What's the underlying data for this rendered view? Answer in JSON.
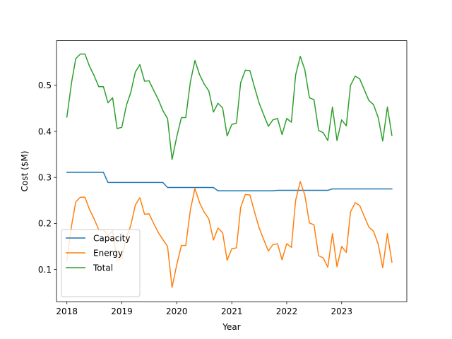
{
  "chart_data": {
    "type": "line",
    "title": "",
    "xlabel": "Year",
    "ylabel": "Cost ($M)",
    "xlim": [
      "2017-10-24",
      "2024-03-09"
    ],
    "ylim": [
      0.03,
      0.597
    ],
    "x_ticks": [
      "2018",
      "2019",
      "2020",
      "2021",
      "2022",
      "2023"
    ],
    "y_ticks": [
      "0.1",
      "0.2",
      "0.3",
      "0.4",
      "0.5"
    ],
    "legend_position": "lower-left",
    "grid": false,
    "x": [
      "2018-01-01",
      "2018-02-01",
      "2018-03-01",
      "2018-04-01",
      "2018-05-01",
      "2018-06-01",
      "2018-07-01",
      "2018-08-01",
      "2018-09-01",
      "2018-10-01",
      "2018-11-01",
      "2018-12-01",
      "2019-01-01",
      "2019-02-01",
      "2019-03-01",
      "2019-04-01",
      "2019-05-01",
      "2019-06-01",
      "2019-07-01",
      "2019-08-01",
      "2019-09-01",
      "2019-10-01",
      "2019-11-01",
      "2019-12-01",
      "2020-01-01",
      "2020-02-01",
      "2020-03-01",
      "2020-04-01",
      "2020-05-01",
      "2020-06-01",
      "2020-07-01",
      "2020-08-01",
      "2020-09-01",
      "2020-10-01",
      "2020-11-01",
      "2020-12-01",
      "2021-01-01",
      "2021-02-01",
      "2021-03-01",
      "2021-04-01",
      "2021-05-01",
      "2021-06-01",
      "2021-07-01",
      "2021-08-01",
      "2021-09-01",
      "2021-10-01",
      "2021-11-01",
      "2021-12-01",
      "2022-01-01",
      "2022-02-01",
      "2022-03-01",
      "2022-04-01",
      "2022-05-01",
      "2022-06-01",
      "2022-07-01",
      "2022-08-01",
      "2022-09-01",
      "2022-10-01",
      "2022-11-01",
      "2022-12-01",
      "2023-01-01",
      "2023-02-01",
      "2023-03-01",
      "2023-04-01",
      "2023-05-01",
      "2023-06-01",
      "2023-07-01",
      "2023-08-01",
      "2023-09-01",
      "2023-10-01",
      "2023-11-01",
      "2023-12-01"
    ],
    "series": [
      {
        "name": "Capacity",
        "color": "#1f77b4",
        "values": [
          0.311,
          0.311,
          0.311,
          0.311,
          0.311,
          0.311,
          0.311,
          0.311,
          0.311,
          0.289,
          0.289,
          0.289,
          0.289,
          0.289,
          0.289,
          0.289,
          0.289,
          0.289,
          0.289,
          0.289,
          0.289,
          0.289,
          0.278,
          0.278,
          0.278,
          0.278,
          0.278,
          0.278,
          0.278,
          0.278,
          0.278,
          0.278,
          0.278,
          0.271,
          0.271,
          0.271,
          0.271,
          0.271,
          0.271,
          0.271,
          0.271,
          0.271,
          0.271,
          0.271,
          0.271,
          0.271,
          0.272,
          0.272,
          0.272,
          0.272,
          0.272,
          0.272,
          0.272,
          0.272,
          0.272,
          0.272,
          0.272,
          0.272,
          0.275,
          0.275,
          0.275,
          0.275,
          0.275,
          0.275,
          0.275,
          0.275,
          0.275,
          0.275,
          0.275,
          0.275,
          0.275,
          0.275
        ]
      },
      {
        "name": "Energy",
        "color": "#ff7f0e",
        "values": [
          0.12,
          0.195,
          0.247,
          0.257,
          0.257,
          0.23,
          0.21,
          0.186,
          0.186,
          0.173,
          0.184,
          0.12,
          0.125,
          0.17,
          0.195,
          0.24,
          0.256,
          0.22,
          0.221,
          0.2,
          0.18,
          0.165,
          0.15,
          0.061,
          0.11,
          0.152,
          0.152,
          0.23,
          0.276,
          0.245,
          0.225,
          0.21,
          0.164,
          0.19,
          0.18,
          0.12,
          0.145,
          0.147,
          0.235,
          0.263,
          0.262,
          0.225,
          0.191,
          0.165,
          0.14,
          0.154,
          0.156,
          0.121,
          0.156,
          0.148,
          0.25,
          0.291,
          0.262,
          0.201,
          0.197,
          0.13,
          0.125,
          0.105,
          0.178,
          0.106,
          0.15,
          0.137,
          0.225,
          0.245,
          0.239,
          0.215,
          0.192,
          0.183,
          0.155,
          0.104,
          0.178,
          0.116
        ]
      },
      {
        "name": "Total",
        "color": "#2ca02c",
        "values": [
          0.431,
          0.506,
          0.558,
          0.568,
          0.568,
          0.541,
          0.521,
          0.497,
          0.497,
          0.462,
          0.473,
          0.406,
          0.409,
          0.457,
          0.484,
          0.529,
          0.545,
          0.509,
          0.51,
          0.489,
          0.469,
          0.445,
          0.428,
          0.339,
          0.388,
          0.43,
          0.43,
          0.508,
          0.554,
          0.523,
          0.503,
          0.488,
          0.442,
          0.461,
          0.451,
          0.39,
          0.415,
          0.418,
          0.506,
          0.533,
          0.532,
          0.496,
          0.462,
          0.436,
          0.411,
          0.425,
          0.428,
          0.393,
          0.428,
          0.42,
          0.522,
          0.563,
          0.534,
          0.473,
          0.469,
          0.402,
          0.397,
          0.38,
          0.453,
          0.38,
          0.425,
          0.412,
          0.5,
          0.52,
          0.514,
          0.49,
          0.467,
          0.458,
          0.43,
          0.379,
          0.453,
          0.391
        ]
      }
    ]
  }
}
